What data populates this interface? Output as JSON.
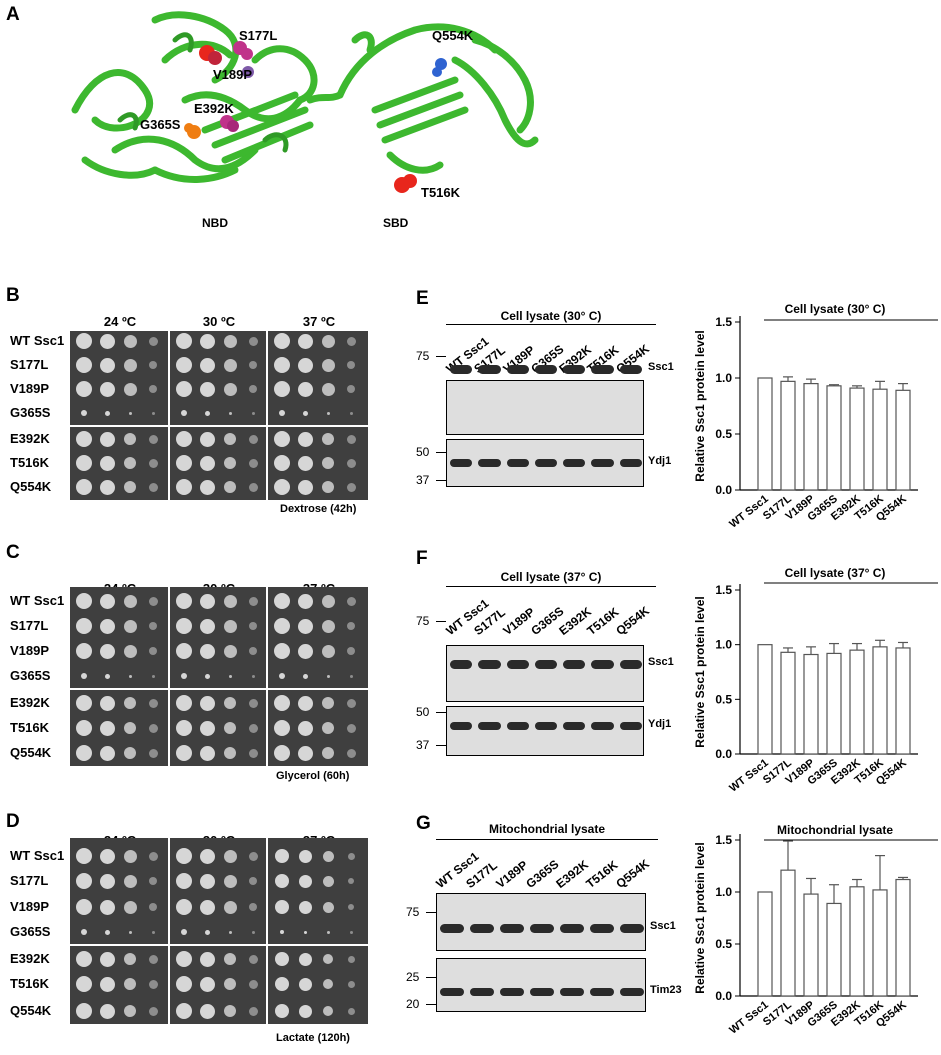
{
  "panel_labels": {
    "A": "A",
    "B": "B",
    "C": "C",
    "D": "D",
    "E": "E",
    "F": "F",
    "G": "G"
  },
  "structure": {
    "domain_labels": [
      "NBD",
      "SBD"
    ],
    "mutation_labels": [
      "S177L",
      "V189P",
      "E392K",
      "G365S",
      "Q554K",
      "T516K"
    ],
    "colors": {
      "ribbon": "#3db82f",
      "red": "#e8261c",
      "magenta": "#c0338a",
      "orange": "#ef7d12",
      "blue": "#2f63d1"
    }
  },
  "spot_assay": {
    "strains": [
      "WT Ssc1",
      "S177L",
      "V189P",
      "G365S",
      "E392K",
      "T516K",
      "Q554K"
    ],
    "temperatures": [
      "24 ºC",
      "30 ºC",
      "37 ºC"
    ],
    "panels": [
      {
        "condition": "Dextrose (42h)"
      },
      {
        "condition": "Glycerol (60h)"
      },
      {
        "condition": "Lactate (120h)"
      }
    ]
  },
  "western": {
    "lanes": [
      "WT Ssc1",
      "S177L",
      "V189P",
      "G365S",
      "E392K",
      "T516K",
      "Q554K"
    ],
    "panels": [
      {
        "title": "Cell lysate (30° C)",
        "markers_top": [
          "75"
        ],
        "markers_bottom": [
          "50",
          "37"
        ],
        "blot_labels": [
          "Ssc1",
          "Ydj1"
        ]
      },
      {
        "title": "Cell lysate (37° C)",
        "markers_top": [
          "75"
        ],
        "markers_bottom": [
          "50",
          "37"
        ],
        "blot_labels": [
          "Ssc1",
          "Ydj1"
        ]
      },
      {
        "title": "Mitochondrial lysate",
        "markers_top": [
          "75"
        ],
        "markers_bottom": [
          "25",
          "20"
        ],
        "blot_labels": [
          "Ssc1",
          "Tim23"
        ]
      }
    ]
  },
  "chart_data": [
    {
      "type": "bar",
      "title": "Cell lysate (30° C)",
      "ylabel": "Relative Ssc1 protein level",
      "categories": [
        "WT Ssc1",
        "S177L",
        "V189P",
        "G365S",
        "E392K",
        "T516K",
        "Q554K"
      ],
      "values": [
        1.0,
        0.97,
        0.95,
        0.93,
        0.91,
        0.9,
        0.89
      ],
      "errors": [
        0.0,
        0.04,
        0.04,
        0.01,
        0.02,
        0.07,
        0.06
      ],
      "ylim": [
        0,
        1.5
      ],
      "yticks": [
        "0.0",
        "0.5",
        "1.0",
        "1.5"
      ]
    },
    {
      "type": "bar",
      "title": "Cell lysate (37° C)",
      "ylabel": "Relative Ssc1 protein level",
      "categories": [
        "WT Ssc1",
        "S177L",
        "V189P",
        "G365S",
        "E392K",
        "T516K",
        "Q554K"
      ],
      "values": [
        1.0,
        0.93,
        0.91,
        0.92,
        0.95,
        0.98,
        0.97
      ],
      "errors": [
        0.0,
        0.04,
        0.07,
        0.09,
        0.06,
        0.06,
        0.05
      ],
      "ylim": [
        0,
        1.5
      ],
      "yticks": [
        "0.0",
        "0.5",
        "1.0",
        "1.5"
      ]
    },
    {
      "type": "bar",
      "title": "Mitochondrial lysate",
      "ylabel": "Relative Ssc1 protein level",
      "categories": [
        "WT Ssc1",
        "S177L",
        "V189P",
        "G365S",
        "E392K",
        "T516K",
        "Q554K"
      ],
      "values": [
        1.0,
        1.21,
        0.98,
        0.89,
        1.05,
        1.02,
        1.12
      ],
      "errors": [
        0.0,
        0.28,
        0.15,
        0.18,
        0.07,
        0.33,
        0.02
      ],
      "ylim": [
        0,
        1.5
      ],
      "yticks": [
        "0.0",
        "0.5",
        "1.0",
        "1.5"
      ]
    }
  ]
}
